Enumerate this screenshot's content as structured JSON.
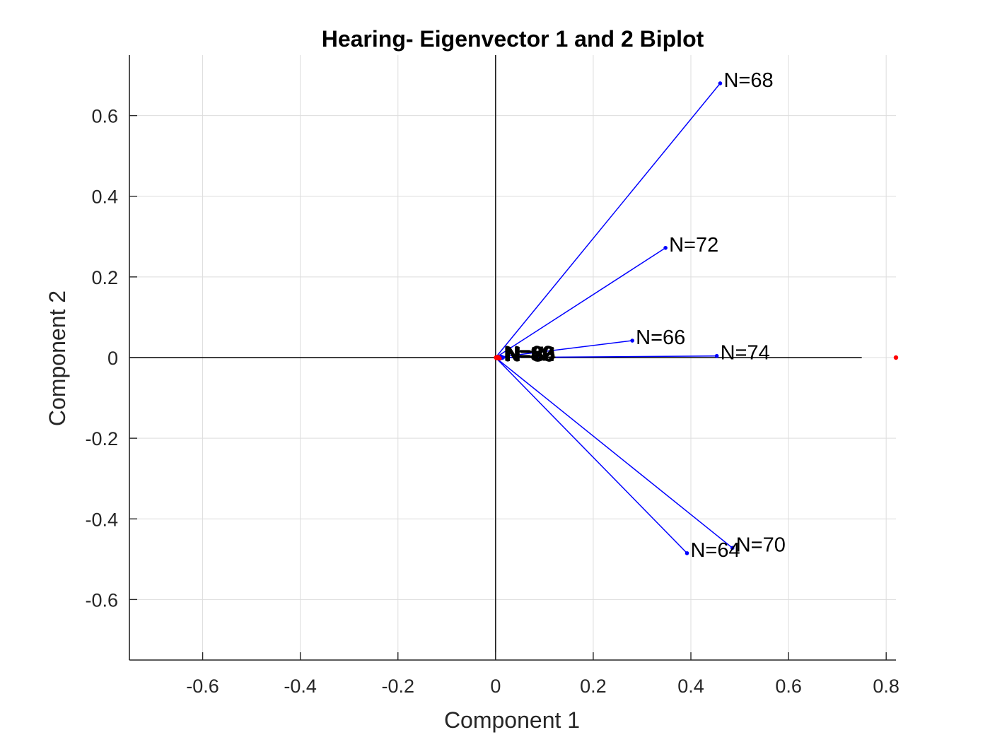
{
  "chart_data": {
    "type": "scatter",
    "subtype": "biplot",
    "title": "Hearing- Eigenvector 1 and 2 Biplot",
    "xlabel": "Component 1",
    "ylabel": "Component 2",
    "xlim": [
      -0.75,
      0.82
    ],
    "ylim": [
      -0.75,
      0.75
    ],
    "xticks": [
      -0.6,
      -0.4,
      -0.2,
      0,
      0.2,
      0.4,
      0.6,
      0.8
    ],
    "yticks": [
      -0.6,
      -0.4,
      -0.2,
      0,
      0.2,
      0.4,
      0.6
    ],
    "xtick_labels": [
      "-0.6",
      "-0.4",
      "-0.2",
      "0",
      "0.2",
      "0.4",
      "0.6",
      "0.8"
    ],
    "ytick_labels": [
      "-0.6",
      "-0.4",
      "-0.2",
      "0",
      "0.2",
      "0.4",
      "0.6"
    ],
    "grid": true,
    "origin_axes": {
      "x_range": [
        -0.75,
        0.75
      ],
      "y_range": [
        -0.75,
        0.75
      ]
    },
    "vector_color": "#0000ff",
    "point_color": "#ff0000",
    "vectors": [
      {
        "label": "N=68",
        "x": 0.46,
        "y": 0.68
      },
      {
        "label": "N=72",
        "x": 0.348,
        "y": 0.272
      },
      {
        "label": "N=66",
        "x": 0.28,
        "y": 0.042
      },
      {
        "label": "N=74",
        "x": 0.453,
        "y": 0.004
      },
      {
        "label": "N=70",
        "x": 0.485,
        "y": -0.472
      },
      {
        "label": "N=64",
        "x": 0.392,
        "y": -0.485
      },
      {
        "label": "N=60",
        "x": 0.01,
        "y": 0.003
      },
      {
        "label": "N=62",
        "x": 0.012,
        "y": 0.002
      },
      {
        "label": "N=76",
        "x": 0.014,
        "y": 0.001
      },
      {
        "label": "N=78",
        "x": 0.011,
        "y": 0.0
      },
      {
        "label": "N=80",
        "x": 0.013,
        "y": -0.001
      },
      {
        "label": "N=82",
        "x": 0.009,
        "y": 0.001
      },
      {
        "label": "N=84",
        "x": 0.015,
        "y": 0.0
      },
      {
        "label": "N=86",
        "x": 0.012,
        "y": -0.001
      }
    ],
    "points": [
      {
        "x": 0.001,
        "y": 0.0
      },
      {
        "x": 0.003,
        "y": 0.001
      },
      {
        "x": 0.004,
        "y": -0.001
      },
      {
        "x": 0.006,
        "y": 0.0
      },
      {
        "x": 0.008,
        "y": -0.002
      },
      {
        "x": 0.002,
        "y": -0.001
      },
      {
        "x": 0.005,
        "y": 0.001
      },
      {
        "x": 0.82,
        "y": 0.0
      }
    ]
  }
}
